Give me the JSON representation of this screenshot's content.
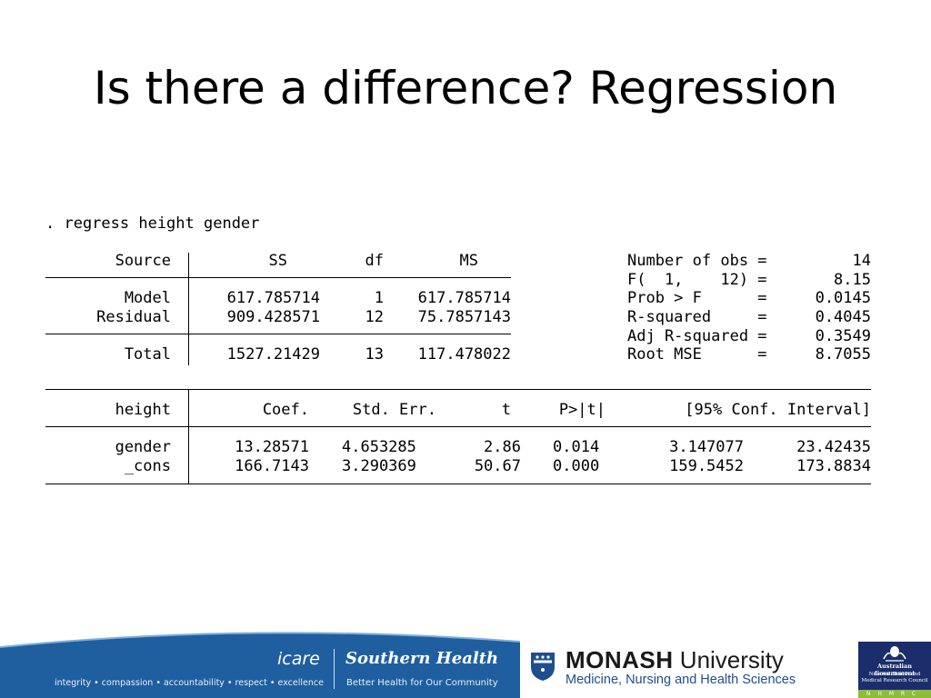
{
  "slide": {
    "title": "Is there a difference? Regression"
  },
  "stata": {
    "command": ". regress height gender",
    "anova": {
      "headers": {
        "source": "Source",
        "ss": "SS",
        "df": "df",
        "ms": "MS"
      },
      "rows": [
        {
          "source": "Model",
          "ss": "617.785714",
          "df": "1",
          "ms": "617.785714"
        },
        {
          "source": "Residual",
          "ss": "909.428571",
          "df": "12",
          "ms": "75.7857143"
        }
      ],
      "total": {
        "source": "Total",
        "ss": "1527.21429",
        "df": "13",
        "ms": "117.478022"
      }
    },
    "stats": [
      {
        "label": "Number of obs =",
        "value": "14"
      },
      {
        "label": "F(  1,    12) =",
        "value": "8.15"
      },
      {
        "label": "Prob > F      =",
        "value": "0.0145"
      },
      {
        "label": "R-squared     =",
        "value": "0.4045"
      },
      {
        "label": "Adj R-squared =",
        "value": "0.3549"
      },
      {
        "label": "Root MSE      =",
        "value": "8.7055"
      }
    ],
    "coef": {
      "headers": {
        "var": "height",
        "coef": "Coef.",
        "se": "Std. Err.",
        "t": "t",
        "p": "P>|t|",
        "ci": "[95% Conf. Interval]"
      },
      "rows": [
        {
          "var": "gender",
          "coef": "13.28571",
          "se": "4.653285",
          "t": "2.86",
          "p": "0.014",
          "lo": "3.147077",
          "hi": "23.42435"
        },
        {
          "var": "_cons",
          "coef": "166.7143",
          "se": "3.290369",
          "t": "50.67",
          "p": "0.000",
          "lo": "159.5452",
          "hi": "173.8834"
        }
      ]
    }
  },
  "footer": {
    "values_line": "integrity • compassion • accountability • respect • excellence",
    "icare": "icare",
    "southern_health": "Southern Health",
    "southern_tagline": "Better Health for Our Community",
    "monash_bold": "MONASH",
    "monash_rest": " University",
    "monash_faculty": "Medicine, Nursing and Health Sciences",
    "nhmrc_gov": "Australian Government",
    "nhmrc_council": "National Health and Medical Research Council",
    "nhmrc_letters": "NHMRC",
    "colors": {
      "footer_blue": "#1f5fa0",
      "nhmrc_navy": "#1b2e6b",
      "nhmrc_green": "#8dbb3a"
    }
  }
}
